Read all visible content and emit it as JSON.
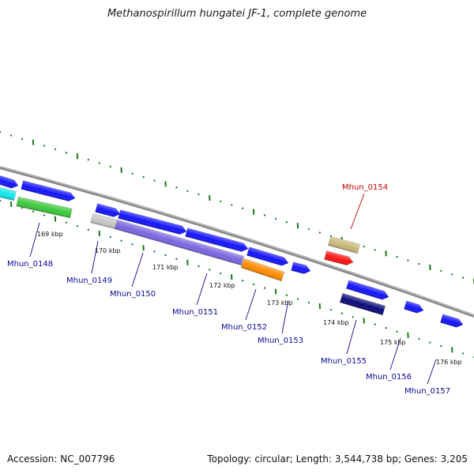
{
  "title": "Methanospirillum hungatei JF-1, complete genome",
  "footer": {
    "accession": "Accession: NC_007796",
    "summary": "Topology: circular; Length: 3,544,738 bp; Genes: 3,205"
  },
  "colors": {
    "backbone": "#888888",
    "tick": "#1a7a1a",
    "label_default": "#0a0a96",
    "label_highlight": "#c80000"
  },
  "ticks": [
    "169 kbp",
    "170 kbp",
    "171 kbp",
    "172 kbp",
    "173 kbp",
    "174 kbp",
    "175 kbp",
    "176 kbp"
  ],
  "genes": [
    {
      "name": "",
      "color": "#1414ff"
    },
    {
      "name": "",
      "color": "#11e6ee"
    },
    {
      "name": "",
      "color": "#1414ff"
    },
    {
      "name": "Mhun_0148",
      "color": "#3cc83c"
    },
    {
      "name": "Mhun_0149",
      "color": "#1414ff"
    },
    {
      "name": "",
      "color": "#c6c6c6"
    },
    {
      "name": "Mhun_0150",
      "color": "#1414ff"
    },
    {
      "name": "",
      "color": "#7a66e0"
    },
    {
      "name": "Mhun_0151",
      "color": "#1414ff"
    },
    {
      "name": "Mhun_0152",
      "color": "#1414ff"
    },
    {
      "name": "",
      "color": "#ff8c00"
    },
    {
      "name": "Mhun_0153",
      "color": "#1414ff"
    },
    {
      "name": "Mhun_0154",
      "color": "#c8b97a"
    },
    {
      "name": "",
      "color": "#ff1414"
    },
    {
      "name": "Mhun_0155",
      "color": "#1414ff"
    },
    {
      "name": "",
      "color": "#0a0a7a"
    },
    {
      "name": "Mhun_0156",
      "color": "#1414ff"
    },
    {
      "name": "Mhun_0157",
      "color": "#1414ff"
    }
  ]
}
